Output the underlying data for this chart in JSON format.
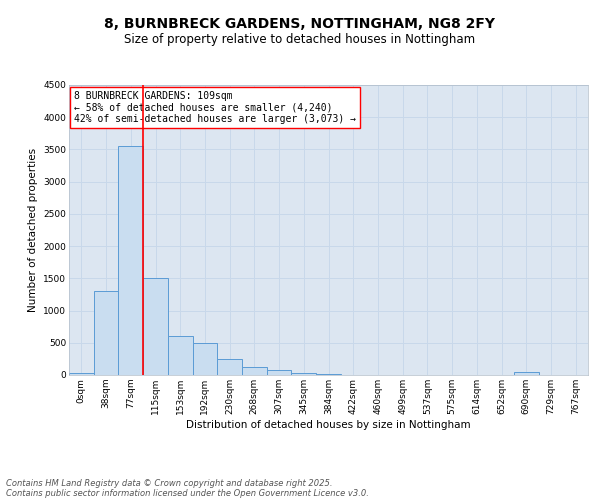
{
  "title_line1": "8, BURNBRECK GARDENS, NOTTINGHAM, NG8 2FY",
  "title_line2": "Size of property relative to detached houses in Nottingham",
  "xlabel": "Distribution of detached houses by size in Nottingham",
  "ylabel": "Number of detached properties",
  "categories": [
    "0sqm",
    "38sqm",
    "77sqm",
    "115sqm",
    "153sqm",
    "192sqm",
    "230sqm",
    "268sqm",
    "307sqm",
    "345sqm",
    "384sqm",
    "422sqm",
    "460sqm",
    "499sqm",
    "537sqm",
    "575sqm",
    "614sqm",
    "652sqm",
    "690sqm",
    "729sqm",
    "767sqm"
  ],
  "bar_values": [
    25,
    1300,
    3550,
    1500,
    600,
    500,
    250,
    120,
    80,
    30,
    15,
    5,
    0,
    0,
    0,
    0,
    0,
    0,
    50,
    0,
    0
  ],
  "bar_color": "#c9ddf0",
  "bar_edge_color": "#5b9bd5",
  "grid_color": "#c8d8ea",
  "background_color": "#dce6f1",
  "vline_x": 2.5,
  "vline_color": "#ff0000",
  "annotation_text": "8 BURNBRECK GARDENS: 109sqm\n← 58% of detached houses are smaller (4,240)\n42% of semi-detached houses are larger (3,073) →",
  "annotation_box_color": "#ffffff",
  "annotation_box_edge": "#ff0000",
  "ylim": [
    0,
    4500
  ],
  "yticks": [
    0,
    500,
    1000,
    1500,
    2000,
    2500,
    3000,
    3500,
    4000,
    4500
  ],
  "footer_line1": "Contains HM Land Registry data © Crown copyright and database right 2025.",
  "footer_line2": "Contains public sector information licensed under the Open Government Licence v3.0.",
  "title_fontsize": 10,
  "subtitle_fontsize": 8.5,
  "axis_label_fontsize": 7.5,
  "tick_fontsize": 6.5,
  "annotation_fontsize": 7,
  "footer_fontsize": 6
}
